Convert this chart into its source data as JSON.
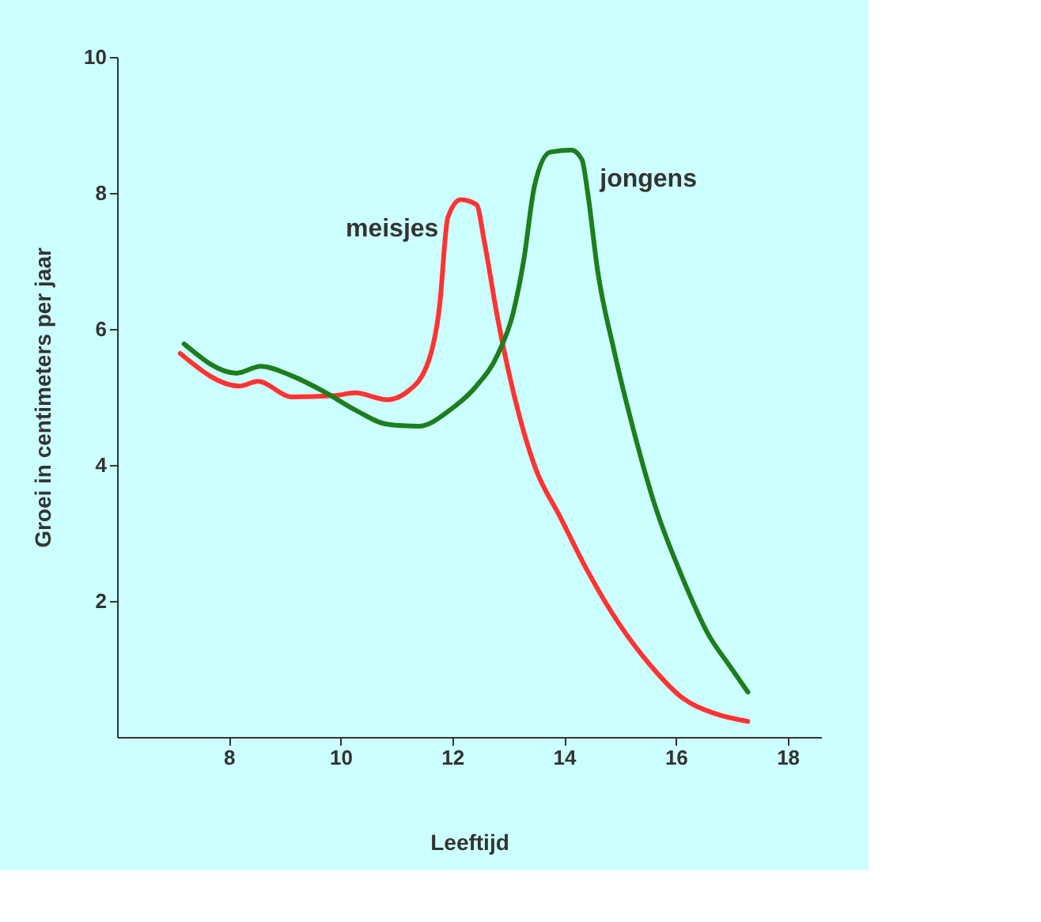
{
  "chart_data": {
    "type": "line",
    "xlabel": "Leeftijd",
    "ylabel": "Groei in centimeters per jaar",
    "xlim": [
      6,
      18.6
    ],
    "ylim": [
      0,
      10
    ],
    "xticks": [
      8,
      10,
      12,
      14,
      16,
      18
    ],
    "yticks": [
      2,
      4,
      6,
      8,
      10
    ],
    "marker": "none",
    "line_style": "solid",
    "series": [
      {
        "name": "meisjes",
        "color": "#ff3333",
        "x": [
          7.13,
          8.19,
          8.52,
          9.13,
          9.89,
          10.26,
          10.83,
          11.2,
          11.58,
          11.77,
          11.92,
          12.15,
          12.43,
          12.58,
          12.81,
          13.09,
          13.47,
          13.94,
          14.42,
          14.98,
          15.55,
          16.11,
          16.68,
          17.29
        ],
        "values": [
          5.64,
          5.16,
          5.23,
          5.0,
          5.02,
          5.06,
          4.96,
          5.08,
          5.54,
          6.32,
          7.64,
          7.9,
          7.83,
          7.25,
          6.16,
          5.08,
          3.99,
          3.22,
          2.44,
          1.67,
          1.05,
          0.58,
          0.35,
          0.23
        ]
      },
      {
        "name": "jongens",
        "color": "#1e7d1e",
        "x": [
          7.2,
          8.14,
          8.57,
          9.13,
          9.7,
          10.26,
          10.83,
          11.4,
          11.96,
          12.43,
          12.81,
          13.09,
          13.28,
          13.47,
          13.75,
          14.13,
          14.32,
          14.42,
          14.6,
          14.89,
          15.26,
          15.64,
          16.11,
          16.58,
          16.96,
          17.29
        ],
        "values": [
          5.78,
          5.35,
          5.45,
          5.31,
          5.08,
          4.81,
          4.6,
          4.57,
          4.81,
          5.16,
          5.62,
          6.24,
          7.02,
          8.1,
          8.6,
          8.63,
          8.49,
          8.02,
          6.86,
          5.7,
          4.46,
          3.37,
          2.36,
          1.51,
          1.05,
          0.66
        ]
      }
    ]
  }
}
